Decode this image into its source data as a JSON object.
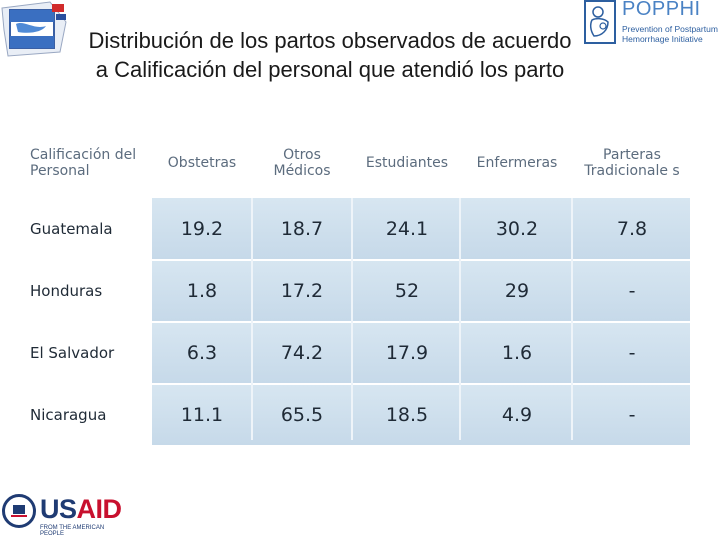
{
  "title": "Distribución de los partos observados de acuerdo a Calificación del personal que atendió los parto",
  "logos": {
    "popphi_name": "POPPHI",
    "popphi_sub": "Prevention of Postpartum Hemorrhage Initiative",
    "usaid_name": "USAID",
    "usaid_sub": "FROM THE AMERICAN PEOPLE"
  },
  "colors": {
    "row_band": "#cfe0ee",
    "header_text": "#5c6c7e",
    "usaid_us": "#1f3b73",
    "usaid_aid": "#c8102e"
  },
  "table": {
    "headers": [
      "Calificación del Personal",
      "Obstetras",
      "Otros Médicos",
      "Estudiantes",
      "Enfermeras",
      "Parteras Tradicionale s"
    ],
    "rows": [
      {
        "label": "Guatemala",
        "values": [
          "19.2",
          "18.7",
          "24.1",
          "30.2",
          "7.8"
        ]
      },
      {
        "label": "Honduras",
        "values": [
          "1.8",
          "17.2",
          "52",
          "29",
          "-"
        ]
      },
      {
        "label": "El Salvador",
        "values": [
          "6.3",
          "74.2",
          "17.9",
          "1.6",
          "-"
        ]
      },
      {
        "label": "Nicaragua",
        "values": [
          "11.1",
          "65.5",
          "18.5",
          "4.9",
          "-"
        ]
      }
    ]
  }
}
